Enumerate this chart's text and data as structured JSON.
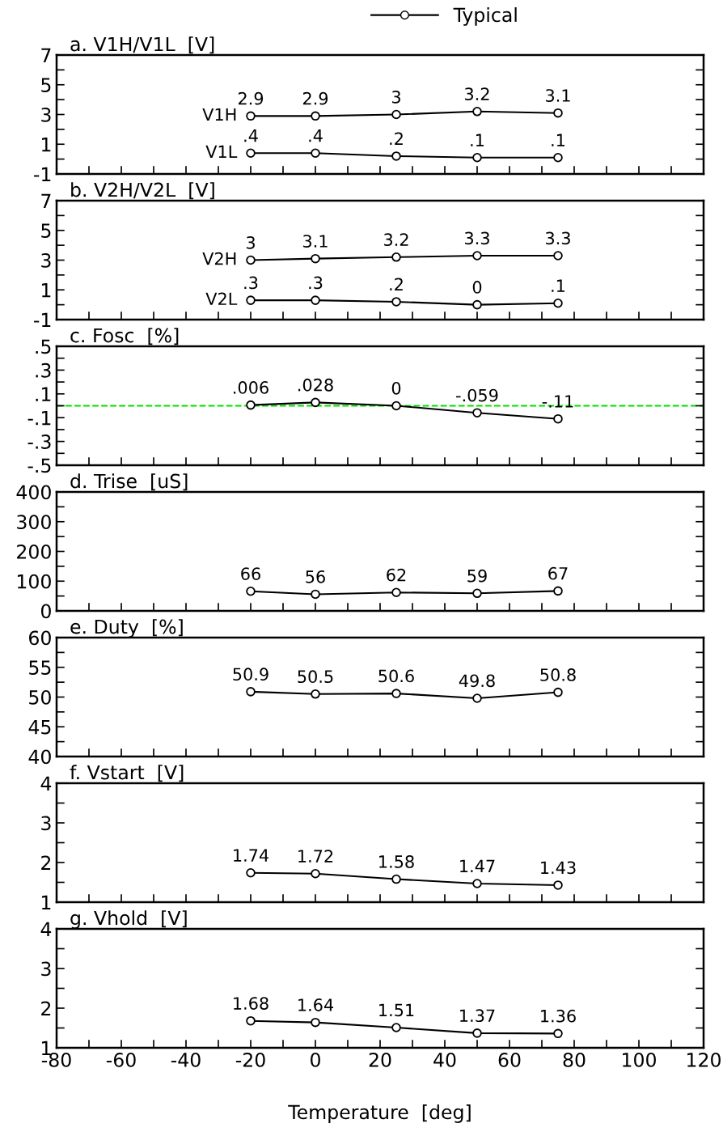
{
  "chart_data": [
    {
      "type": "line",
      "title": "a. V1H/V1L  [V]",
      "legend_title": "Typical",
      "marker": "circle",
      "line_style": "solid",
      "grid": false,
      "tick_labels": "y",
      "x": [
        -20,
        0,
        25,
        50,
        75
      ],
      "series": [
        {
          "name": "V1H",
          "color": "#000000",
          "values": [
            2.9,
            2.9,
            3,
            3.2,
            3.1
          ],
          "value_labels": [
            "2.9",
            "2.9",
            "3",
            "3.2",
            "3.1"
          ]
        },
        {
          "name": "V1L",
          "color": "#000000",
          "values": [
            0.4,
            0.4,
            0.2,
            0.1,
            0.1
          ],
          "value_labels": [
            ".4",
            ".4",
            ".2",
            ".1",
            ".1"
          ]
        }
      ],
      "xlim": [
        -80,
        120
      ],
      "xticks": [
        -80,
        -70,
        -60,
        -50,
        -40,
        -30,
        -20,
        -10,
        0,
        10,
        20,
        30,
        40,
        50,
        60,
        70,
        80,
        90,
        100,
        110,
        120
      ],
      "ylim": [
        -1,
        7
      ],
      "yticks": [
        -1,
        {
          "value": 0,
          "label": null
        },
        1,
        {
          "value": 2,
          "label": null
        },
        3,
        {
          "value": 4,
          "label": null
        },
        5,
        {
          "value": 6,
          "label": null
        },
        7
      ]
    },
    {
      "type": "line",
      "title": "b. V2H/V2L  [V]",
      "marker": "circle",
      "line_style": "solid",
      "grid": false,
      "tick_labels": "y",
      "x": [
        -20,
        0,
        25,
        50,
        75
      ],
      "series": [
        {
          "name": "V2H",
          "color": "#000000",
          "values": [
            3,
            3.1,
            3.2,
            3.3,
            3.3
          ],
          "value_labels": [
            "3",
            "3.1",
            "3.2",
            "3.3",
            "3.3"
          ]
        },
        {
          "name": "V2L",
          "color": "#000000",
          "values": [
            0.3,
            0.3,
            0.2,
            0,
            0.1
          ],
          "value_labels": [
            ".3",
            ".3",
            ".2",
            "0",
            ".1"
          ]
        }
      ],
      "xlim": [
        -80,
        120
      ],
      "xticks": [
        -80,
        -70,
        -60,
        -50,
        -40,
        -30,
        -20,
        -10,
        0,
        10,
        20,
        30,
        40,
        50,
        60,
        70,
        80,
        90,
        100,
        110,
        120
      ],
      "ylim": [
        -1,
        7
      ],
      "yticks": [
        -1,
        {
          "value": 0,
          "label": null
        },
        1,
        {
          "value": 2,
          "label": null
        },
        3,
        {
          "value": 4,
          "label": null
        },
        5,
        {
          "value": 6,
          "label": null
        },
        7
      ]
    },
    {
      "type": "line",
      "title": "c. Fosc  [%]",
      "marker": "circle",
      "line_style": "solid",
      "grid": false,
      "tick_labels": "y",
      "x": [
        -20,
        0,
        25,
        50,
        75
      ],
      "series": [
        {
          "color": "#000000",
          "values": [
            0.006,
            0.028,
            0,
            -0.059,
            -0.11
          ],
          "value_labels": [
            ".006",
            ".028",
            "0",
            "-.059",
            "-.11"
          ]
        }
      ],
      "ref_lines": [
        {
          "axis": "y",
          "value": 0,
          "color": "#00e000",
          "line_style": "dashed"
        }
      ],
      "xlim": [
        -80,
        120
      ],
      "xticks": [
        -80,
        -70,
        -60,
        -50,
        -40,
        -30,
        -20,
        -10,
        0,
        10,
        20,
        30,
        40,
        50,
        60,
        70,
        80,
        90,
        100,
        110,
        120
      ],
      "ylim": [
        -0.5,
        0.5
      ],
      "yticks": [
        {
          "value": -0.5,
          "label": "-.5"
        },
        {
          "value": -0.4,
          "label": null
        },
        {
          "value": -0.3,
          "label": "-.3"
        },
        {
          "value": -0.2,
          "label": null
        },
        {
          "value": -0.1,
          "label": "-.1"
        },
        {
          "value": 0,
          "label": null
        },
        {
          "value": 0.1,
          "label": ".1"
        },
        {
          "value": 0.2,
          "label": null
        },
        {
          "value": 0.3,
          "label": ".3"
        },
        {
          "value": 0.4,
          "label": null
        },
        {
          "value": 0.5,
          "label": ".5"
        }
      ]
    },
    {
      "type": "line",
      "title": "d. Trise  [uS]",
      "marker": "circle",
      "line_style": "solid",
      "grid": false,
      "tick_labels": "y",
      "x": [
        -20,
        0,
        25,
        50,
        75
      ],
      "series": [
        {
          "color": "#000000",
          "values": [
            66,
            56,
            62,
            59,
            67
          ],
          "value_labels": [
            "66",
            "56",
            "62",
            "59",
            "67"
          ]
        }
      ],
      "xlim": [
        -80,
        120
      ],
      "xticks": [
        -80,
        -70,
        -60,
        -50,
        -40,
        -30,
        -20,
        -10,
        0,
        10,
        20,
        30,
        40,
        50,
        60,
        70,
        80,
        90,
        100,
        110,
        120
      ],
      "ylim": [
        0,
        400
      ],
      "yticks": [
        0,
        {
          "value": 50,
          "label": null
        },
        100,
        {
          "value": 150,
          "label": null
        },
        200,
        {
          "value": 250,
          "label": null
        },
        300,
        {
          "value": 350,
          "label": null
        },
        400
      ]
    },
    {
      "type": "line",
      "title": "e. Duty  [%]",
      "marker": "circle",
      "line_style": "solid",
      "grid": false,
      "tick_labels": "y",
      "x": [
        -20,
        0,
        25,
        50,
        75
      ],
      "series": [
        {
          "color": "#000000",
          "values": [
            50.9,
            50.5,
            50.6,
            49.8,
            50.8
          ],
          "value_labels": [
            "50.9",
            "50.5",
            "50.6",
            "49.8",
            "50.8"
          ]
        }
      ],
      "xlim": [
        -80,
        120
      ],
      "xticks": [
        -80,
        -70,
        -60,
        -50,
        -40,
        -30,
        -20,
        -10,
        0,
        10,
        20,
        30,
        40,
        50,
        60,
        70,
        80,
        90,
        100,
        110,
        120
      ],
      "ylim": [
        40,
        60
      ],
      "yticks": [
        40,
        {
          "value": 42.5,
          "label": null
        },
        45,
        {
          "value": 47.5,
          "label": null
        },
        50,
        {
          "value": 52.5,
          "label": null
        },
        55,
        {
          "value": 57.5,
          "label": null
        },
        60
      ]
    },
    {
      "type": "line",
      "title": "f. Vstart  [V]",
      "marker": "circle",
      "line_style": "solid",
      "grid": false,
      "tick_labels": "y",
      "x": [
        -20,
        0,
        25,
        50,
        75
      ],
      "series": [
        {
          "color": "#000000",
          "values": [
            1.74,
            1.72,
            1.58,
            1.47,
            1.43
          ],
          "value_labels": [
            "1.74",
            "1.72",
            "1.58",
            "1.47",
            "1.43"
          ]
        }
      ],
      "xlim": [
        -80,
        120
      ],
      "xticks": [
        -80,
        -70,
        -60,
        -50,
        -40,
        -30,
        -20,
        -10,
        0,
        10,
        20,
        30,
        40,
        50,
        60,
        70,
        80,
        90,
        100,
        110,
        120
      ],
      "ylim": [
        1,
        4
      ],
      "yticks": [
        1,
        {
          "value": 1.5,
          "label": null
        },
        2,
        {
          "value": 2.5,
          "label": null
        },
        3,
        {
          "value": 3.5,
          "label": null
        },
        4
      ]
    },
    {
      "type": "line",
      "title": "g. Vhold  [V]",
      "xlabel": "Temperature  [deg]",
      "marker": "circle",
      "line_style": "solid",
      "grid": false,
      "x": [
        -20,
        0,
        25,
        50,
        75
      ],
      "series": [
        {
          "color": "#000000",
          "values": [
            1.68,
            1.64,
            1.51,
            1.37,
            1.36
          ],
          "value_labels": [
            "1.68",
            "1.64",
            "1.51",
            "1.37",
            "1.36"
          ]
        }
      ],
      "xlim": [
        -80,
        120
      ],
      "xticks": [
        -80,
        {
          "value": -70,
          "label": null
        },
        -60,
        {
          "value": -50,
          "label": null
        },
        -40,
        {
          "value": -30,
          "label": null
        },
        -20,
        {
          "value": -10,
          "label": null
        },
        0,
        {
          "value": 10,
          "label": null
        },
        20,
        {
          "value": 30,
          "label": null
        },
        40,
        {
          "value": 50,
          "label": null
        },
        60,
        {
          "value": 70,
          "label": null
        },
        80,
        {
          "value": 90,
          "label": null
        },
        100,
        {
          "value": 110,
          "label": null
        },
        120
      ],
      "ylim": [
        1,
        4
      ],
      "yticks": [
        1,
        {
          "value": 1.5,
          "label": null
        },
        2,
        {
          "value": 2.5,
          "label": null
        },
        3,
        {
          "value": 3.5,
          "label": null
        },
        4
      ]
    }
  ]
}
